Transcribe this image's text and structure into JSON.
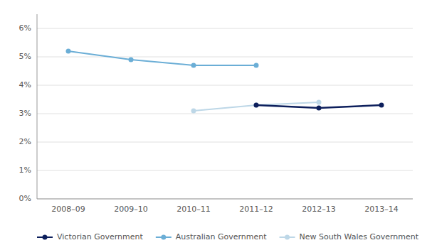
{
  "chart_data": {
    "type": "line",
    "categories": [
      "2008–09",
      "2009–10",
      "2010–11",
      "2011–12",
      "2012–13",
      "2013–14"
    ],
    "series": [
      {
        "name": "Victorian Government",
        "color": "#0d1f5c",
        "marker": "circle",
        "values": [
          null,
          null,
          null,
          0.033,
          0.032,
          0.033
        ]
      },
      {
        "name": "Australian Government",
        "color": "#6baed6",
        "marker": "circle",
        "values": [
          0.052,
          0.049,
          0.047,
          0.047,
          null,
          null
        ]
      },
      {
        "name": "New South Wales Government",
        "color": "#bdd7e7",
        "marker": "circle",
        "values": [
          null,
          null,
          0.031,
          0.033,
          0.034,
          null
        ]
      }
    ],
    "ylim": [
      0,
      0.065
    ],
    "yticks": [
      {
        "value": 0,
        "label": "0%"
      },
      {
        "value": 0.01,
        "label": "1%"
      },
      {
        "value": 0.02,
        "label": "2%"
      },
      {
        "value": 0.03,
        "label": "3%"
      },
      {
        "value": 0.04,
        "label": "4%"
      },
      {
        "value": 0.05,
        "label": "5%"
      },
      {
        "value": 0.06,
        "label": "6%"
      }
    ],
    "grid": true,
    "legend": "bottom"
  }
}
